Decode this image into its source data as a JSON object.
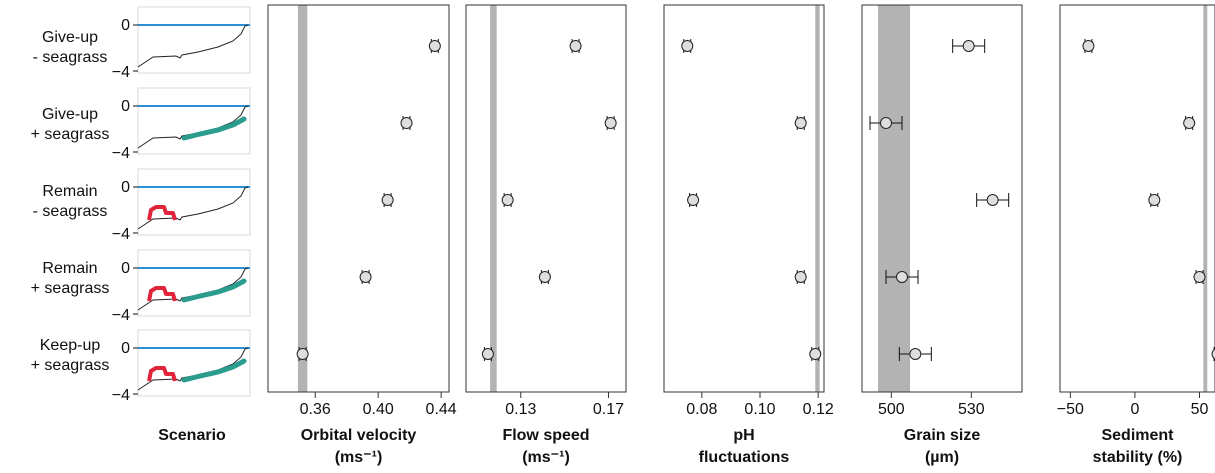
{
  "chart_data": [
    {
      "type": "line",
      "name": "Scenario",
      "title_lines": [
        "Scenario"
      ],
      "rows": [
        {
          "label": [
            "Give-up",
            "- seagrass"
          ],
          "yticks": [
            "0",
            "−4"
          ],
          "seagrass": false,
          "reef": false
        },
        {
          "label": [
            "Give-up",
            "+ seagrass"
          ],
          "yticks": [
            "0",
            "−4"
          ],
          "seagrass": true,
          "reef": false
        },
        {
          "label": [
            "Remain",
            "- seagrass"
          ],
          "yticks": [
            "0",
            "−4"
          ],
          "seagrass": false,
          "reef": true
        },
        {
          "label": [
            "Remain",
            "+ seagrass"
          ],
          "yticks": [
            "0",
            "−4"
          ],
          "seagrass": true,
          "reef": true
        },
        {
          "label": [
            "Keep-up",
            "+ seagrass"
          ],
          "yticks": [
            "0",
            "−4"
          ],
          "seagrass": true,
          "reef": true
        }
      ],
      "colors": {
        "water": "#2b8fd6",
        "seagrass": "#2a9d8f",
        "reef": "#e0253a",
        "profile": "#222222"
      }
    },
    {
      "type": "scatter",
      "title_lines": [
        "Orbital velocity",
        "(ms⁻¹)"
      ],
      "xlim": [
        0.33,
        0.445
      ],
      "ticks": [
        0.36,
        0.4,
        0.44
      ],
      "tick_labels": [
        "0.36",
        "0.40",
        "0.44"
      ],
      "band": [
        0.349,
        0.355
      ],
      "values": [
        0.436,
        0.418,
        0.406,
        0.392,
        0.352
      ],
      "err": [
        0.001,
        0.001,
        0.001,
        0.001,
        0.001
      ]
    },
    {
      "type": "scatter",
      "title_lines": [
        "Flow speed",
        "(ms⁻¹)"
      ],
      "xlim": [
        0.105,
        0.178
      ],
      "ticks": [
        0.13,
        0.17
      ],
      "tick_labels": [
        "0.13",
        "0.17"
      ],
      "band": [
        0.116,
        0.119
      ],
      "values": [
        0.155,
        0.171,
        0.124,
        0.141,
        0.115
      ],
      "err": [
        0.0005,
        0.0005,
        0.0005,
        0.0005,
        0.0005
      ]
    },
    {
      "type": "scatter",
      "title_lines": [
        "pH",
        "fluctuations"
      ],
      "xlim": [
        0.067,
        0.122
      ],
      "ticks": [
        0.08,
        0.1,
        0.12
      ],
      "tick_labels": [
        "0.08",
        "0.10",
        "0.12"
      ],
      "band": [
        0.119,
        0.1205
      ],
      "values": [
        0.075,
        0.114,
        0.077,
        0.114,
        0.119
      ],
      "err": [
        0.0002,
        0.0002,
        0.0002,
        0.0002,
        0.0002
      ]
    },
    {
      "type": "scatter",
      "title_lines": [
        "Grain size",
        "(µm)"
      ],
      "xlim": [
        489,
        549
      ],
      "ticks": [
        500,
        530
      ],
      "tick_labels": [
        "500",
        "530"
      ],
      "band": [
        495,
        507
      ],
      "values": [
        529,
        498,
        538,
        504,
        509
      ],
      "err": [
        6,
        6,
        6,
        6,
        6
      ]
    },
    {
      "type": "scatter",
      "title_lines": [
        "Sediment",
        "stability (%)"
      ],
      "xlim": [
        -58,
        62
      ],
      "ticks": [
        -50,
        0,
        50
      ],
      "tick_labels": [
        "−50",
        "0",
        "50"
      ],
      "band": [
        53,
        56
      ],
      "values": [
        -36,
        42,
        15,
        50,
        64
      ],
      "err": [
        1,
        1,
        1,
        1,
        1
      ]
    }
  ]
}
